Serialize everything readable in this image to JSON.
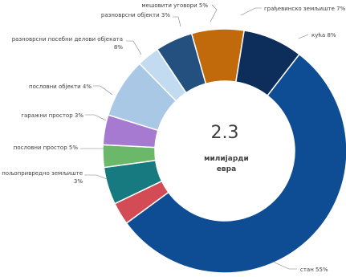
{
  "chart_data": {
    "type": "pie",
    "donut": true,
    "center_value": "2.3",
    "center_unit_line1": "милијарди",
    "center_unit_line2": "евра",
    "slices": [
      {
        "name": "грађевинско земљиште",
        "value": 7,
        "label_lines": [
          "грађевинско земљиште 7%"
        ],
        "color": "#c06a0b"
      },
      {
        "name": "кућа",
        "value": 8,
        "label_lines": [
          "кућа 8%"
        ],
        "color": "#0d2e5a"
      },
      {
        "name": "стан",
        "value": 55,
        "label_lines": [
          "стан 55%"
        ],
        "color": "#0e4d94"
      },
      {
        "name": "пољопривредно земљиште",
        "value": 3,
        "label_lines": [
          "пољопривредно земљиште",
          "3%"
        ],
        "color": "#d24b55"
      },
      {
        "name": "пословни простор",
        "value": 5,
        "label_lines": [
          "пословни простор 5%"
        ],
        "color": "#167a80"
      },
      {
        "name": "гаражни простор",
        "value": 3,
        "label_lines": [
          "гаражни простор 3%"
        ],
        "color": "#6bb86b"
      },
      {
        "name": "пословни објекти",
        "value": 4,
        "label_lines": [
          "пословни објекти 4%"
        ],
        "color": "#a67ad0"
      },
      {
        "name": "разноврсни посебни делови објеката",
        "value": 8,
        "label_lines": [
          "разноврсни посебни делови објеката",
          "8%"
        ],
        "color": "#a9c8e6"
      },
      {
        "name": "разноврсни објекти",
        "value": 3,
        "label_lines": [
          "разноврсни објекти 3%"
        ],
        "color": "#c3dbf0"
      },
      {
        "name": "мешовити уговори",
        "value": 5,
        "label_lines": [
          "мешовити уговори 5%"
        ],
        "color": "#24507f"
      }
    ]
  }
}
